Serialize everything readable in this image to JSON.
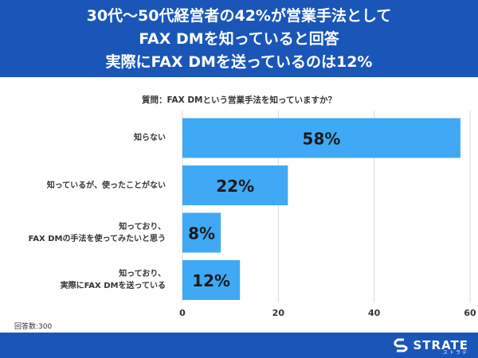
{
  "header": {
    "line1": "30代〜50代経営者の42%が営業手法として",
    "line2": "FAX DMを知っていると回答",
    "line3": "実際にFAX DMを送っているのは12%"
  },
  "question": "質問：FAX DMという営業手法を知っていますか？",
  "respondents": "回答数:300",
  "brand": {
    "name": "STRATE",
    "sub": "ストラテ"
  },
  "colors": {
    "header_bg": "#1a56b8",
    "bar": "#3fa9f5"
  },
  "chart_data": {
    "type": "bar",
    "orientation": "horizontal",
    "categories": [
      [
        "知らない"
      ],
      [
        "知っているが、使ったことがない"
      ],
      [
        "知っており、",
        "FAX DMの手法を使ってみたいと思う"
      ],
      [
        "知っており、",
        "実際にFAX DMを送っている"
      ]
    ],
    "values": [
      58,
      22,
      8,
      12
    ],
    "value_labels": [
      "58%",
      "22%",
      "8%",
      "12%"
    ],
    "xlim": [
      0,
      60
    ],
    "xticks": [
      0,
      20,
      40,
      60
    ],
    "xtick_labels": [
      "0",
      "20",
      "40",
      "60"
    ],
    "grid": true,
    "title": "質問：FAX DMという営業手法を知っていますか？"
  }
}
